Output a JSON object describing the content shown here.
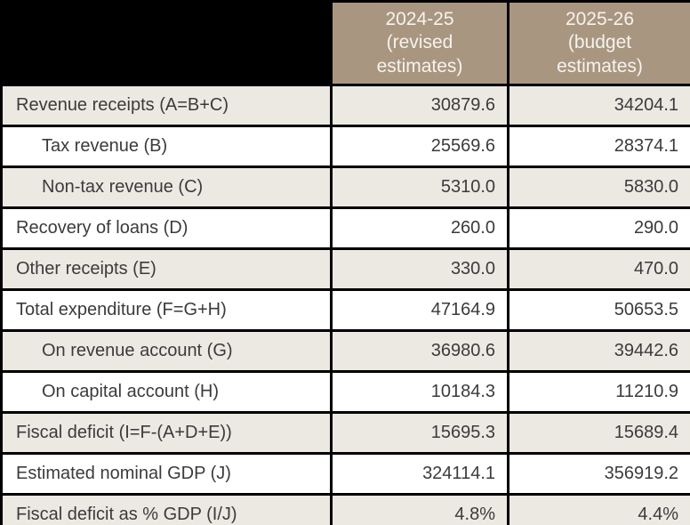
{
  "colors": {
    "page_background": "#000000",
    "header_background": "#a99681",
    "header_text": "#f6f3ee",
    "shaded_row_background": "#ece9e3",
    "plain_row_background": "#ffffff",
    "body_text": "#3b3b3b",
    "grid_border": "#000000"
  },
  "header_display": {
    "col1": "2024-25\n(revised\nestimates)",
    "col2": "2025-26\n(budget\nestimates)"
  },
  "chart_data": {
    "type": "table",
    "title": "",
    "columns": [
      "2024-25 (revised estimates)",
      "2025-26 (budget estimates)"
    ],
    "rows": [
      {
        "label": "Revenue receipts (A=B+C)",
        "values": [
          30879.6,
          34204.1
        ],
        "display": [
          "30879.6",
          "34204.1"
        ]
      },
      {
        "label": "Tax revenue (B)",
        "values": [
          25569.6,
          28374.1
        ],
        "display": [
          "25569.6",
          "28374.1"
        ]
      },
      {
        "label": "Non-tax revenue (C)",
        "values": [
          5310.0,
          5830.0
        ],
        "display": [
          "5310.0",
          "5830.0"
        ]
      },
      {
        "label": "Recovery of loans (D)",
        "values": [
          260.0,
          290.0
        ],
        "display": [
          "260.0",
          "290.0"
        ]
      },
      {
        "label": "Other receipts (E)",
        "values": [
          330.0,
          470.0
        ],
        "display": [
          "330.0",
          "470.0"
        ]
      },
      {
        "label": "Total expenditure (F=G+H)",
        "values": [
          47164.9,
          50653.5
        ],
        "display": [
          "47164.9",
          "50653.5"
        ]
      },
      {
        "label": "On revenue account (G)",
        "values": [
          36980.6,
          39442.6
        ],
        "display": [
          "36980.6",
          "39442.6"
        ]
      },
      {
        "label": "On capital account (H)",
        "values": [
          10184.3,
          11210.9
        ],
        "display": [
          "10184.3",
          "11210.9"
        ]
      },
      {
        "label": "Fiscal deficit (I=F-(A+D+E))",
        "values": [
          15695.3,
          15689.4
        ],
        "display": [
          "15695.3",
          "15689.4"
        ]
      },
      {
        "label": "Estimated nominal GDP (J)",
        "values": [
          324114.1,
          356919.2
        ],
        "display": [
          "324114.1",
          "356919.2"
        ]
      },
      {
        "label": "Fiscal deficit as % GDP (I/J)",
        "values": [
          4.8,
          4.4
        ],
        "display": [
          "4.8%",
          "4.4%"
        ]
      }
    ]
  }
}
